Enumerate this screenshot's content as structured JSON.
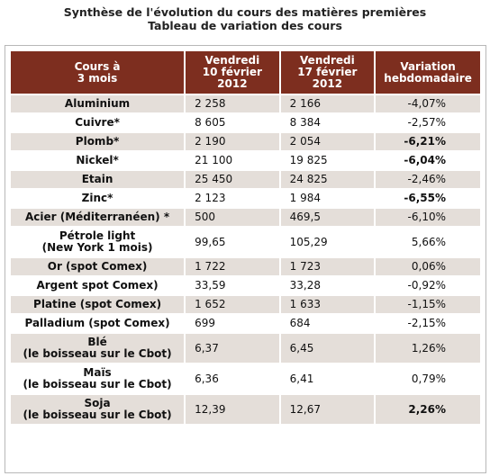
{
  "title": {
    "line1": "Synthèse de l'évolution du cours des matières premières",
    "line2": "Tableau de variation des cours"
  },
  "table": {
    "headers": {
      "col1": [
        "Cours à",
        "3 mois"
      ],
      "col2": [
        "Vendredi",
        "10 février",
        "2012"
      ],
      "col3": [
        "Vendredi",
        "17 février",
        "2012"
      ],
      "col4": [
        "Variation",
        "hebdomadaire"
      ]
    },
    "rows": [
      {
        "name": [
          "Aluminium"
        ],
        "v1": "2 258",
        "v2": "2 166",
        "var": "-4,07%",
        "bold": false
      },
      {
        "name": [
          "Cuivre*"
        ],
        "v1": "8 605",
        "v2": "8 384",
        "var": "-2,57%",
        "bold": false
      },
      {
        "name": [
          "Plomb*"
        ],
        "v1": "2 190",
        "v2": "2 054",
        "var": "-6,21%",
        "bold": true
      },
      {
        "name": [
          "Nickel*"
        ],
        "v1": "21 100",
        "v2": "19 825",
        "var": "-6,04%",
        "bold": true
      },
      {
        "name": [
          "Etain"
        ],
        "v1": "25 450",
        "v2": "24 825",
        "var": "-2,46%",
        "bold": false
      },
      {
        "name": [
          "Zinc*"
        ],
        "v1": "2 123",
        "v2": "1 984",
        "var": "-6,55%",
        "bold": true
      },
      {
        "name": [
          "Acier (Méditerranéen) *"
        ],
        "v1": "500",
        "v2": "469,5",
        "var": "-6,10%",
        "bold": false
      },
      {
        "name": [
          "Pétrole light",
          "(New York 1 mois)"
        ],
        "v1": "99,65",
        "v2": "105,29",
        "var": "5,66%",
        "bold": false
      },
      {
        "name": [
          "Or (spot Comex)"
        ],
        "v1": "1 722",
        "v2": "1 723",
        "var": "0,06%",
        "bold": false
      },
      {
        "name": [
          "Argent spot Comex)"
        ],
        "v1": "33,59",
        "v2": "33,28",
        "var": "-0,92%",
        "bold": false
      },
      {
        "name": [
          "Platine (spot Comex)"
        ],
        "v1": "1 652",
        "v2": "1 633",
        "var": "-1,15%",
        "bold": false
      },
      {
        "name": [
          "Palladium (spot Comex)"
        ],
        "v1": "699",
        "v2": "684",
        "var": "-2,15%",
        "bold": false
      },
      {
        "name": [
          "Blé",
          "(le boisseau sur le Cbot)"
        ],
        "v1": "6,37",
        "v2": "6,45",
        "var": "1,26%",
        "bold": false
      },
      {
        "name": [
          "Maïs",
          "(le boisseau sur le Cbot)"
        ],
        "v1": "6,36",
        "v2": "6,41",
        "var": "0,79%",
        "bold": false
      },
      {
        "name": [
          "Soja",
          "(le boisseau sur le Cbot)"
        ],
        "v1": "12,39",
        "v2": "12,67",
        "var": "2,26%",
        "bold": true
      }
    ]
  }
}
